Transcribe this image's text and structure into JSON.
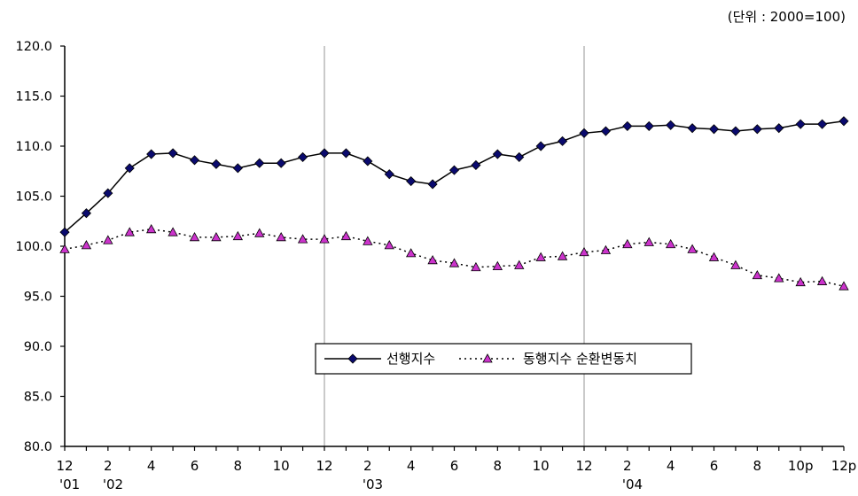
{
  "unit_note": "(단위 : 2000=100)",
  "chart_data": {
    "type": "line",
    "unit": "(단위 : 2000=100)",
    "ylim": [
      80,
      120
    ],
    "yticks": [
      "120.0",
      "115.0",
      "110.0",
      "105.0",
      "100.0",
      "95.0",
      "90.0",
      "85.0",
      "80.0"
    ],
    "ytick_values": [
      120,
      115,
      110,
      105,
      100,
      95,
      90,
      85,
      80
    ],
    "x_count": 37,
    "x_tick_labels": [
      {
        "i": 0,
        "text": "12"
      },
      {
        "i": 2,
        "text": "2"
      },
      {
        "i": 4,
        "text": "4"
      },
      {
        "i": 6,
        "text": "6"
      },
      {
        "i": 8,
        "text": "8"
      },
      {
        "i": 10,
        "text": "10"
      },
      {
        "i": 12,
        "text": "12"
      },
      {
        "i": 14,
        "text": "2"
      },
      {
        "i": 16,
        "text": "4"
      },
      {
        "i": 18,
        "text": "6"
      },
      {
        "i": 20,
        "text": "8"
      },
      {
        "i": 22,
        "text": "10"
      },
      {
        "i": 24,
        "text": "12"
      },
      {
        "i": 26,
        "text": "2"
      },
      {
        "i": 28,
        "text": "4"
      },
      {
        "i": 30,
        "text": "6"
      },
      {
        "i": 32,
        "text": "8"
      },
      {
        "i": 34,
        "text": "10p"
      },
      {
        "i": 36,
        "text": "12p"
      }
    ],
    "x_year_labels": [
      {
        "i": 0,
        "text": "'01"
      },
      {
        "i": 2,
        "text": "'02"
      },
      {
        "i": 14,
        "text": "'03"
      },
      {
        "i": 26,
        "text": "'04"
      }
    ],
    "vertical_lines_at": [
      12,
      24
    ],
    "legend_position": "center-lower",
    "series": [
      {
        "name": "선행지수",
        "color": "#000000",
        "marker_color": "#0a0a6e",
        "marker": "diamond",
        "line_style": "solid",
        "values": [
          101.4,
          103.3,
          105.3,
          107.8,
          109.2,
          109.3,
          108.6,
          108.2,
          107.8,
          108.3,
          108.3,
          108.9,
          109.3,
          109.3,
          108.5,
          107.2,
          106.5,
          106.2,
          107.6,
          108.1,
          109.2,
          108.9,
          110.0,
          110.5,
          111.3,
          111.5,
          112.0,
          112.0,
          112.1,
          111.8,
          111.7,
          111.5,
          111.7,
          111.8,
          112.2,
          112.2,
          112.5
        ]
      },
      {
        "name": "동행지수 순환변동치",
        "color": "#000000",
        "marker_color": "#cc33cc",
        "marker": "triangle",
        "line_style": "dotted",
        "values": [
          99.7,
          100.1,
          100.6,
          101.4,
          101.7,
          101.4,
          100.9,
          100.9,
          101.0,
          101.3,
          100.9,
          100.7,
          100.7,
          101.0,
          100.5,
          100.1,
          99.3,
          98.6,
          98.3,
          97.9,
          98.0,
          98.1,
          98.9,
          99.0,
          99.4,
          99.6,
          100.2,
          100.4,
          100.2,
          99.7,
          98.9,
          98.1,
          97.1,
          96.8,
          96.4,
          96.5,
          96.0
        ]
      }
    ]
  }
}
